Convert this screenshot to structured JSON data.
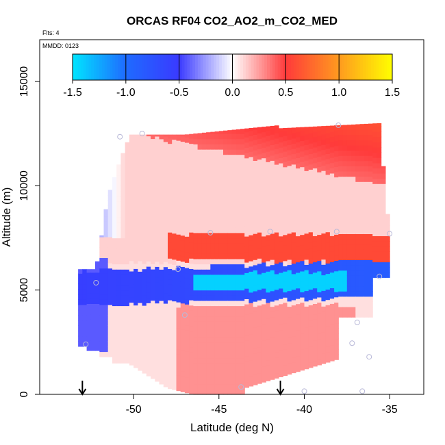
{
  "chart_data": {
    "type": "heatmap",
    "title": "ORCAS RF04 CO2_AO2_m_CO2_MED",
    "annotations": {
      "flights": "Flts: 4",
      "mmdd": "MMDD: 0123"
    },
    "xlabel": "Latitude (deg N)",
    "ylabel": "Altitude (m)",
    "xlim": [
      -55.5,
      -33
    ],
    "ylim": [
      0,
      17000
    ],
    "xticks": [
      -50,
      -45,
      -40,
      -35
    ],
    "xtick_labels": [
      "-50",
      "-45",
      "-40",
      "-35"
    ],
    "yticks": [
      0,
      5000,
      10000,
      15000
    ],
    "ytick_labels": [
      "0",
      "5000",
      "10000",
      "15000"
    ],
    "colorbar": {
      "range": [
        -1.5,
        1.5
      ],
      "ticks": [
        -1.5,
        -1.0,
        -0.5,
        0.0,
        0.5,
        1.0,
        1.5
      ],
      "tick_labels": [
        "-1.5",
        "-1.0",
        "-0.5",
        "0.0",
        "0.5",
        "1.0",
        "1.5"
      ],
      "colors": {
        "neg_max": "#00e5ff",
        "neg_mid": "#1f6bff",
        "neg_half": "#3a3aff",
        "zero": "#ffffff",
        "pos_half": "#ff3a3a",
        "pos_mid": "#ff9a1f",
        "pos_max": "#ffff00"
      }
    },
    "field_regions": [
      {
        "name": "upper-red-wedge",
        "lat": [
          -51.5,
          -35
        ],
        "alt": [
          8000,
          13000
        ],
        "value": 0.45
      },
      {
        "name": "mid-red-band",
        "lat": [
          -48,
          -35
        ],
        "alt": [
          6500,
          7800
        ],
        "value": 0.55
      },
      {
        "name": "cyan-core",
        "lat": [
          -46,
          -37.5
        ],
        "alt": [
          5000,
          5900
        ],
        "value": -1.4
      },
      {
        "name": "blue-band",
        "lat": [
          -52.5,
          -35.5
        ],
        "alt": [
          4200,
          6300
        ],
        "value": -0.6
      },
      {
        "name": "west-blue-column",
        "lat": [
          -53,
          -50.5
        ],
        "alt": [
          2300,
          11000
        ],
        "value": -0.4
      },
      {
        "name": "lower-red-area",
        "lat": [
          -48,
          -38
        ],
        "alt": [
          0,
          4000
        ],
        "value": 0.3
      }
    ],
    "observation_points": [
      {
        "lat": -50.8,
        "alt": 12350
      },
      {
        "lat": -49.5,
        "alt": 12500
      },
      {
        "lat": -38.0,
        "alt": 12900
      },
      {
        "lat": -45.5,
        "alt": 7750
      },
      {
        "lat": -42.0,
        "alt": 7800
      },
      {
        "lat": -38.1,
        "alt": 7800
      },
      {
        "lat": -35.0,
        "alt": 7700
      },
      {
        "lat": -47.4,
        "alt": 6000
      },
      {
        "lat": -52.2,
        "alt": 5350
      },
      {
        "lat": -35.6,
        "alt": 5650
      },
      {
        "lat": -47.0,
        "alt": 3800
      },
      {
        "lat": -36.9,
        "alt": 3450
      },
      {
        "lat": -37.2,
        "alt": 2450
      },
      {
        "lat": -36.2,
        "alt": 1800
      },
      {
        "lat": -52.8,
        "alt": 2400
      },
      {
        "lat": -43.7,
        "alt": 350
      },
      {
        "lat": -40.0,
        "alt": 150
      },
      {
        "lat": -36.6,
        "alt": 150
      }
    ],
    "arrows": [
      {
        "lat": -53.0,
        "label": ""
      },
      {
        "lat": -41.4,
        "label": ""
      }
    ]
  }
}
